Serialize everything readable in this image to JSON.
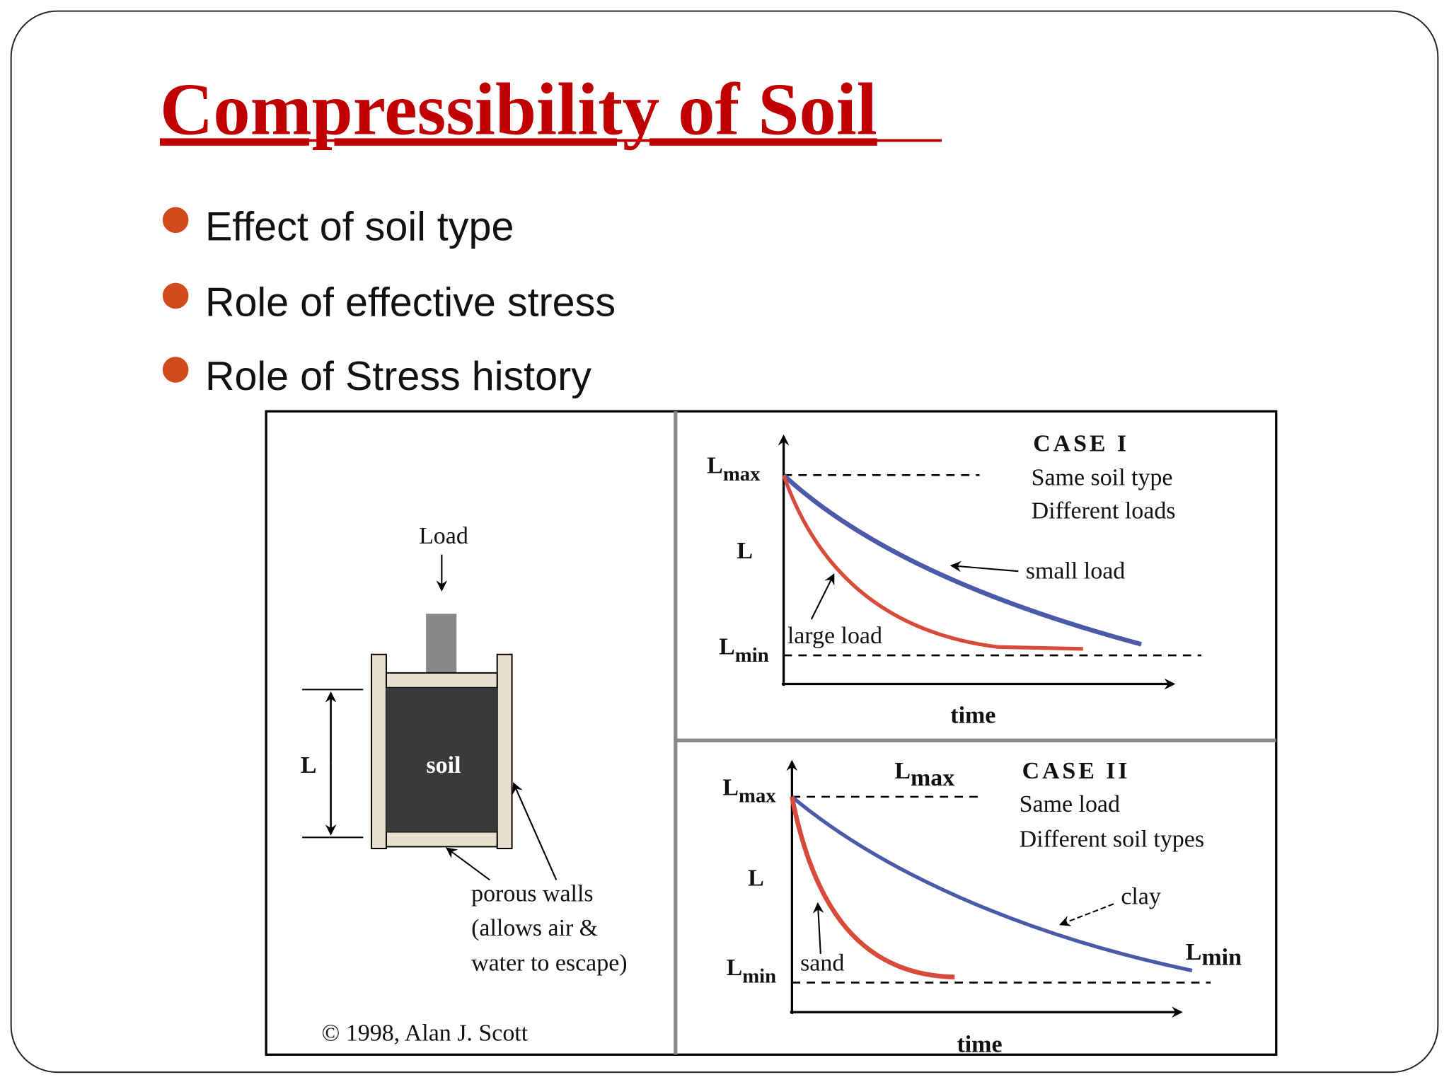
{
  "header": {
    "title": "Compressibility of Soil"
  },
  "bullets": [
    "Effect of soil type",
    "Role of effective stress",
    "Role of Stress history"
  ],
  "figure": {
    "apparatus": {
      "load": "Load",
      "l": "L",
      "soil": "soil",
      "note": [
        "porous walls",
        "(allows air &",
        "water to escape)"
      ],
      "copyright": "© 1998, Alan J. Scott"
    },
    "case_1": {
      "title": "CASE I",
      "lines": [
        "Same soil type",
        "Different loads"
      ],
      "l_max": {
        "base": "L",
        "sub": "max"
      },
      "l": "L",
      "l_min": {
        "base": "L",
        "sub": "min"
      },
      "time": "time",
      "small_load": "small load",
      "large_load": "large load"
    },
    "case_2": {
      "title": "CASE II",
      "lines": [
        "Same load",
        "Different soil types"
      ],
      "l_max": {
        "base": "L",
        "sub": "max"
      },
      "l_max_top": {
        "base": "L",
        "sub": "max"
      },
      "l": "L",
      "l_min": {
        "base": "L",
        "sub": "min"
      },
      "l_min_right": {
        "base": "L",
        "sub": "min"
      },
      "time": "time",
      "clay": "clay",
      "sand": "sand"
    }
  }
}
